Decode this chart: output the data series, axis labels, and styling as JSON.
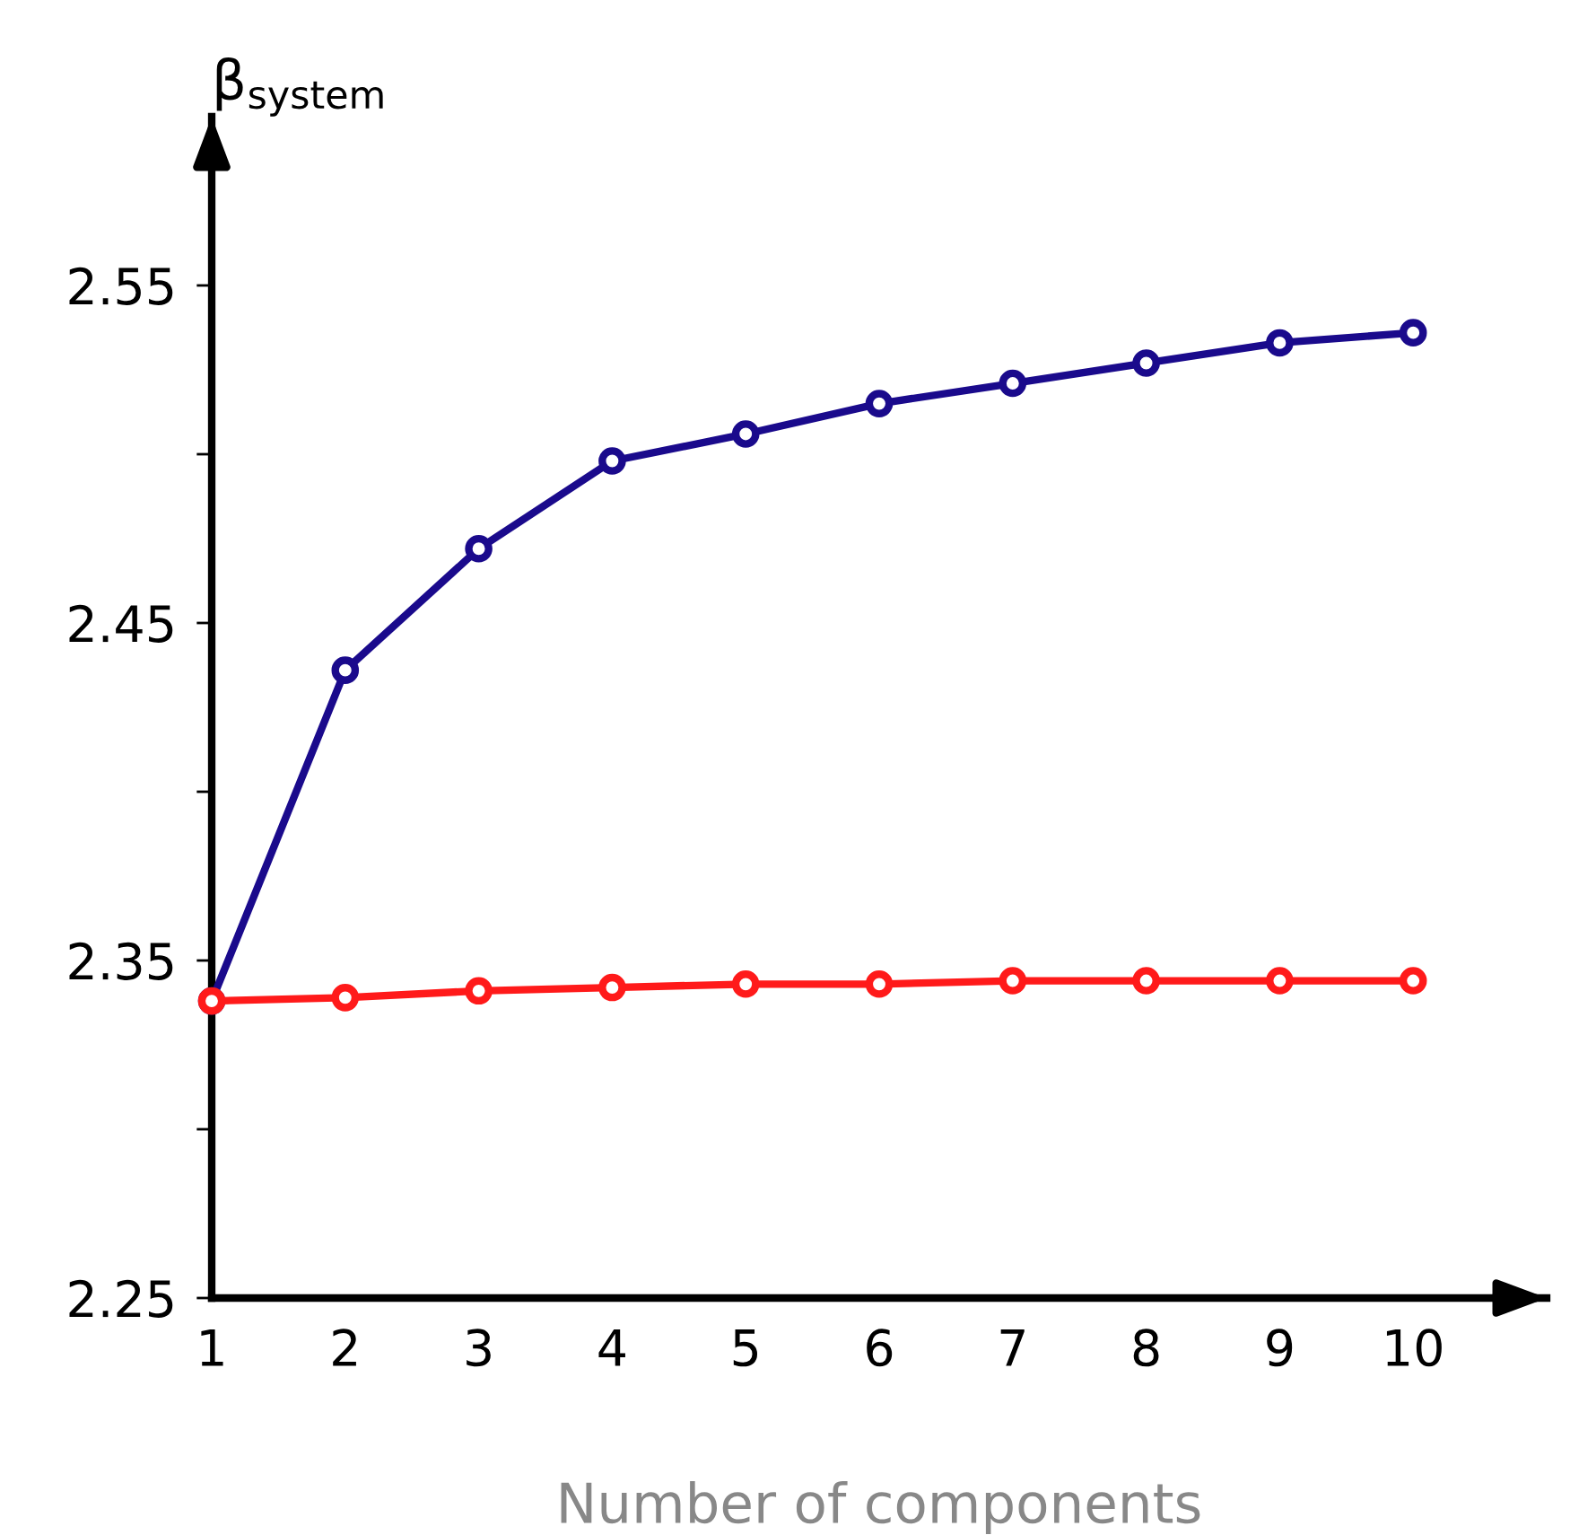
{
  "chart_data": {
    "type": "line",
    "ylabel": "β$_{system}$",
    "xlabel": "Number of components",
    "x": [
      1,
      2,
      3,
      4,
      5,
      6,
      7,
      8,
      9,
      10
    ],
    "series": [
      {
        "color": "#1a0a8c",
        "values": [
          2.338,
          2.436,
          2.472,
          2.498,
          2.506,
          2.515,
          2.521,
          2.527,
          2.533,
          2.536
        ]
      },
      {
        "color": "#ff1a1a",
        "values": [
          2.338,
          2.339,
          2.341,
          2.342,
          2.343,
          2.343,
          2.344,
          2.344,
          2.344,
          2.344
        ]
      }
    ],
    "xlim": [
      1,
      11
    ],
    "xticks": [
      1,
      2,
      3,
      4,
      5,
      6,
      7,
      8,
      9,
      10
    ],
    "ylim": [
      2.25,
      2.6
    ],
    "yticks": [
      2.25,
      {
        "value": 2.3,
        "label": null
      },
      2.35,
      {
        "value": 2.4,
        "label": null
      },
      2.45,
      {
        "value": 2.5,
        "label": null
      },
      2.55
    ],
    "grid": false,
    "legend": false,
    "marker": "circle",
    "line_style": "solid"
  }
}
